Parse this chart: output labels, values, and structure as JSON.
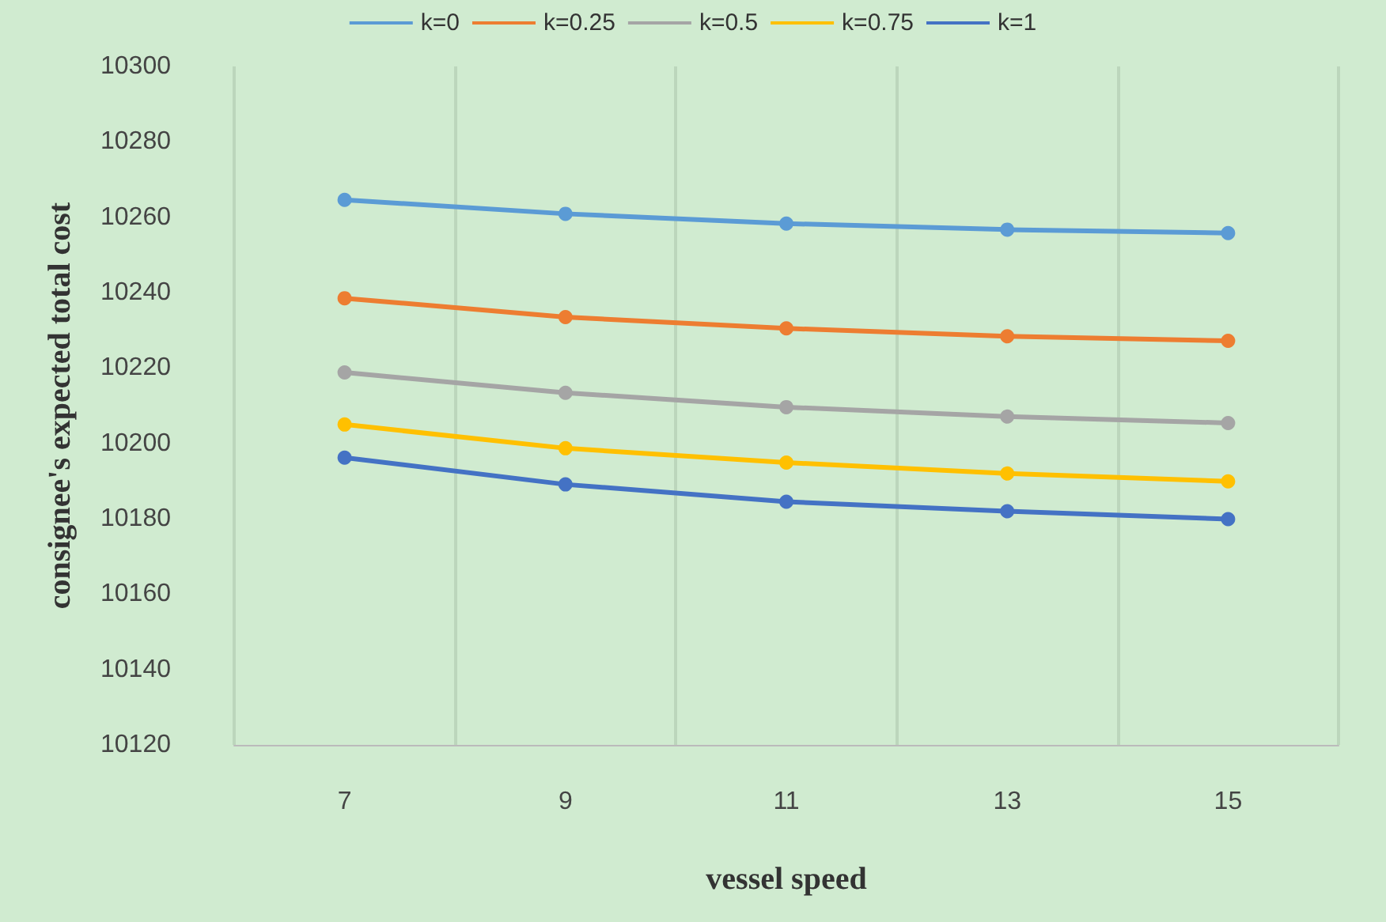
{
  "chart_data": {
    "type": "line",
    "xlabel": "vessel speed",
    "ylabel": "consignee's expected total cost",
    "categories": [
      "7",
      "9",
      "11",
      "13",
      "15"
    ],
    "series": [
      {
        "name": "k=0",
        "color": "#5b9bd5",
        "values": [
          10264.6,
          10260.9,
          10258.3,
          10256.7,
          10255.8
        ]
      },
      {
        "name": "k=0.25",
        "color": "#ed7d31",
        "values": [
          10238.5,
          10233.5,
          10230.5,
          10228.4,
          10227.2
        ]
      },
      {
        "name": "k=0.5",
        "color": "#a5a5a5",
        "values": [
          10218.8,
          10213.4,
          10209.6,
          10207.1,
          10205.4
        ]
      },
      {
        "name": "k=0.75",
        "color": "#ffc000",
        "values": [
          10205,
          10198.7,
          10194.9,
          10192,
          10189.9
        ]
      },
      {
        "name": "k=1",
        "color": "#4472c4",
        "values": [
          10196.2,
          10189.1,
          10184.5,
          10182,
          10179.9
        ]
      }
    ],
    "ylim": [
      10120,
      10300
    ],
    "yticks": [
      10120,
      10140,
      10160,
      10180,
      10200,
      10220,
      10240,
      10260,
      10280,
      10300
    ],
    "grid": "x",
    "legend": "top",
    "marker": "circle",
    "line_style": "solid"
  }
}
